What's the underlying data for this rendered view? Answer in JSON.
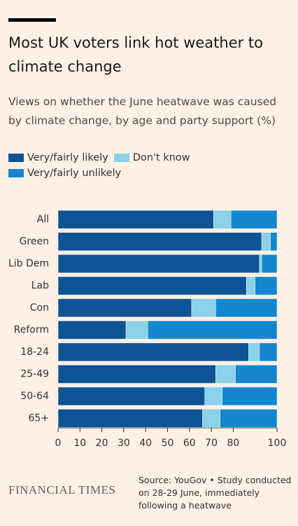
{
  "chart_data": {
    "type": "bar",
    "orientation": "horizontal",
    "stacked": true,
    "title": "Most UK voters link hot weather to climate change",
    "subtitle": "Views on whether the June heatwave was caused by climate change, by age and party support (%)",
    "categories": [
      "All",
      "Green",
      "Lib Dem",
      "Lab",
      "Con",
      "Reform",
      "18-24",
      "25-49",
      "50-64",
      "65+"
    ],
    "series": [
      {
        "name": "Very/fairly likely",
        "color": "#0d5496",
        "values": [
          71,
          93,
          92,
          86,
          61,
          31,
          87,
          72,
          67,
          66
        ]
      },
      {
        "name": "Don't know",
        "color": "#8ad1ea",
        "values": [
          8,
          4,
          1,
          4,
          11,
          10,
          5,
          9,
          8,
          8
        ]
      },
      {
        "name": "Very/fairly unlikely",
        "color": "#1287d0",
        "values": [
          21,
          3,
          7,
          10,
          28,
          59,
          8,
          19,
          25,
          26
        ]
      }
    ],
    "xlim": [
      0,
      100
    ],
    "xticks": [
      0,
      10,
      20,
      30,
      40,
      50,
      60,
      70,
      80,
      100
    ],
    "source": [
      "Source: YouGov • Study conducted",
      "on 28-29 June, immediately",
      "following a heatwave"
    ],
    "brand": "FINANCIAL TIMES"
  }
}
